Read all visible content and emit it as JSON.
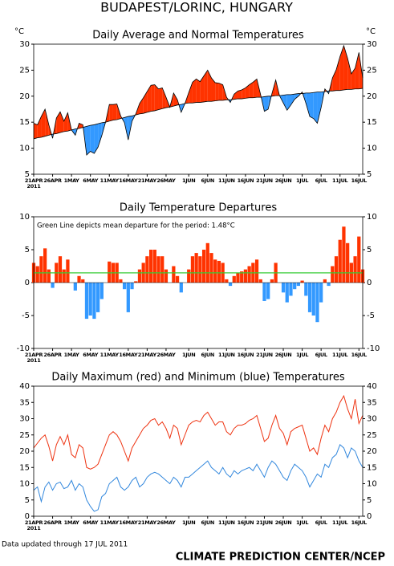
{
  "title": "BUDAPEST/LORINC, HUNGARY",
  "footer": {
    "updated": "Data updated through 17 JUL 2011",
    "source": "CLIMATE PREDICTION CENTER/NCEP"
  },
  "chart_data": [
    {
      "type": "area",
      "title": "Daily Average and Normal Temperatures",
      "y_label": "°C",
      "x": [
        "21APR",
        "22APR",
        "23APR",
        "24APR",
        "25APR",
        "26APR",
        "27APR",
        "28APR",
        "29APR",
        "30APR",
        "1MAY",
        "2MAY",
        "3MAY",
        "4MAY",
        "5MAY",
        "6MAY",
        "7MAY",
        "8MAY",
        "9MAY",
        "10MAY",
        "11MAY",
        "12MAY",
        "13MAY",
        "14MAY",
        "15MAY",
        "16MAY",
        "17MAY",
        "18MAY",
        "19MAY",
        "20MAY",
        "21MAY",
        "22MAY",
        "23MAY",
        "24MAY",
        "25MAY",
        "26MAY",
        "27MAY",
        "28MAY",
        "29MAY",
        "30MAY",
        "31MAY",
        "1JUN",
        "2JUN",
        "3JUN",
        "4JUN",
        "5JUN",
        "6JUN",
        "7JUN",
        "8JUN",
        "9JUN",
        "10JUN",
        "11JUN",
        "12JUN",
        "13JUN",
        "14JUN",
        "15JUN",
        "16JUN",
        "17JUN",
        "18JUN",
        "19JUN",
        "20JUN",
        "21JUN",
        "22JUN",
        "23JUN",
        "24JUN",
        "25JUN",
        "26JUN",
        "27JUN",
        "28JUN",
        "29JUN",
        "30JUN",
        "1JUL",
        "2JUL",
        "3JUL",
        "4JUL",
        "5JUL",
        "6JUL",
        "7JUL",
        "8JUL",
        "9JUL",
        "10JUL",
        "11JUL",
        "12JUL",
        "13JUL",
        "14JUL",
        "15JUL",
        "16JUL",
        "17JUL"
      ],
      "xticks": [
        "21APR",
        "26APR",
        "1MAY",
        "6MAY",
        "11MAY",
        "16MAY",
        "21MAY",
        "26MAY",
        "1JUN",
        "6JUN",
        "11JUN",
        "16JUN",
        "21JUN",
        "26JUN",
        "1JUL",
        "6JUL",
        "11JUL",
        "16JUL"
      ],
      "x_year": "2011",
      "ylim": [
        5,
        30
      ],
      "yticks": [
        5,
        10,
        15,
        20,
        25,
        30
      ],
      "above_color": "#ff3300",
      "below_color": "#3399ff",
      "line_color": "#000000",
      "values": [
        14.8,
        14.5,
        16.1,
        17.5,
        14.5,
        11.9,
        15.8,
        17.0,
        15.2,
        16.8,
        13.5,
        12.5,
        14.8,
        14.5,
        8.7,
        9.4,
        9.0,
        10.2,
        12.4,
        15.0,
        18.4,
        18.4,
        18.5,
        16.2,
        14.9,
        11.6,
        15.2,
        16.6,
        18.6,
        19.7,
        20.9,
        22.1,
        22.2,
        21.4,
        21.6,
        19.8,
        17.9,
        20.6,
        19.3,
        16.9,
        18.6,
        20.7,
        22.7,
        23.3,
        22.8,
        23.9,
        25.0,
        23.5,
        22.6,
        22.5,
        22.2,
        19.8,
        18.8,
        20.4,
        21.0,
        21.2,
        21.6,
        22.2,
        22.7,
        23.3,
        20.3,
        17.1,
        17.5,
        20.5,
        23.1,
        20.1,
        18.7,
        17.3,
        18.3,
        19.4,
        20.0,
        20.8,
        18.6,
        16.1,
        15.7,
        14.8,
        17.8,
        21.4,
        20.5,
        23.5,
        25.1,
        27.6,
        29.7,
        27.3,
        24.3,
        25.4,
        28.4,
        23.5
      ],
      "normal": [
        11.8,
        12.0,
        12.1,
        12.3,
        12.5,
        12.7,
        12.8,
        13.0,
        13.2,
        13.3,
        13.5,
        13.7,
        13.8,
        14.0,
        14.2,
        14.4,
        14.5,
        14.7,
        14.9,
        15.0,
        15.2,
        15.4,
        15.5,
        15.7,
        15.9,
        16.1,
        16.2,
        16.4,
        16.6,
        16.7,
        16.9,
        17.1,
        17.2,
        17.4,
        17.6,
        17.8,
        17.9,
        18.1,
        18.3,
        18.4,
        18.6,
        18.7,
        18.7,
        18.8,
        18.8,
        18.9,
        19.0,
        19.0,
        19.1,
        19.2,
        19.2,
        19.3,
        19.3,
        19.4,
        19.5,
        19.5,
        19.6,
        19.7,
        19.7,
        19.8,
        19.8,
        19.9,
        20.0,
        20.0,
        20.1,
        20.1,
        20.2,
        20.3,
        20.3,
        20.4,
        20.5,
        20.5,
        20.6,
        20.6,
        20.7,
        20.8,
        20.8,
        20.9,
        21.0,
        21.0,
        21.1,
        21.1,
        21.2,
        21.3,
        21.3,
        21.4,
        21.4,
        21.5
      ]
    },
    {
      "type": "bar",
      "title": "Daily Temperature Departures",
      "annotation": "Green Line depicts mean departure for the period: 1.48°C",
      "xticks": [
        "21APR",
        "26APR",
        "1MAY",
        "6MAY",
        "11MAY",
        "16MAY",
        "21MAY",
        "26MAY",
        "1JUN",
        "6JUN",
        "11JUN",
        "16JUN",
        "21JUN",
        "26JUN",
        "1JUL",
        "6JUL",
        "11JUL",
        "16JUL"
      ],
      "x_year": "2011",
      "ylim": [
        -10,
        10
      ],
      "yticks": [
        -10,
        -5,
        0,
        5,
        10
      ],
      "positive_color": "#ff3300",
      "negative_color": "#3399ff",
      "mean_departure": 1.48,
      "mean_color": "#33cc33",
      "values": [
        3,
        2.5,
        4,
        5.2,
        2,
        -0.8,
        3,
        4,
        2,
        3.5,
        0,
        -1.2,
        1,
        0.5,
        -5.5,
        -5,
        -5.5,
        -4.5,
        -2.5,
        0,
        3.2,
        3,
        3,
        0.5,
        -1,
        -4.5,
        -1,
        0.2,
        2,
        3,
        4,
        5,
        5,
        4,
        4,
        2,
        0,
        2.5,
        1,
        -1.5,
        0,
        2,
        4,
        4.5,
        4,
        5,
        6,
        4.5,
        3.5,
        3.3,
        3,
        0.5,
        -0.5,
        1,
        1.5,
        1.7,
        2,
        2.5,
        3,
        3.5,
        0.5,
        -2.8,
        -2.5,
        0.5,
        3,
        0,
        -1.5,
        -3,
        -2,
        -1,
        -0.5,
        0.3,
        -2,
        -4.5,
        -5,
        -6,
        -3,
        0.5,
        -0.5,
        2.5,
        4,
        6.5,
        8.5,
        6,
        3,
        4,
        7,
        2
      ]
    },
    {
      "type": "line",
      "title": "Daily Maximum (red) and Minimum (blue) Temperatures",
      "xticks": [
        "21APR",
        "26APR",
        "1MAY",
        "6MAY",
        "11MAY",
        "16MAY",
        "21MAY",
        "26MAY",
        "1JUN",
        "6JUN",
        "11JUN",
        "16JUN",
        "21JUN",
        "26JUN",
        "1JUL",
        "6JUL",
        "11JUL",
        "16JUL"
      ],
      "x_year": "2011",
      "ylim": [
        0,
        40
      ],
      "yticks": [
        0,
        5,
        10,
        15,
        20,
        25,
        30,
        35,
        40
      ],
      "series": [
        {
          "color": "#ee3311",
          "values": [
            21,
            22.5,
            24,
            25,
            21.5,
            17,
            22,
            24.5,
            22,
            25,
            19,
            18,
            22,
            21,
            15,
            14.5,
            15,
            16,
            19,
            22,
            25,
            26,
            25,
            23,
            20,
            17,
            21,
            23,
            25,
            27,
            28,
            29.5,
            30,
            28,
            29,
            27,
            24,
            28,
            27,
            22,
            25,
            28,
            29,
            29.5,
            29,
            31,
            32,
            30,
            28,
            29,
            29,
            26,
            25,
            27,
            28,
            28,
            28.5,
            29.5,
            30,
            31,
            27,
            23,
            24,
            28,
            31,
            27,
            25.5,
            22,
            26,
            27,
            27.5,
            28,
            24,
            20,
            21,
            19,
            24,
            28,
            26,
            30,
            32,
            35,
            37,
            33,
            30,
            36,
            28.5,
            31
          ]
        },
        {
          "color": "#3388dd",
          "values": [
            8,
            9,
            4.5,
            9,
            10.5,
            8,
            10,
            10.5,
            8.5,
            9,
            11,
            8,
            10,
            9,
            5,
            3,
            1.5,
            2,
            6,
            7,
            10,
            11,
            12,
            9,
            8,
            9,
            11,
            12,
            9,
            10,
            12,
            13,
            13.5,
            13,
            12,
            11,
            10,
            12,
            11,
            9,
            12,
            12,
            13,
            14,
            15,
            16,
            17,
            15,
            14,
            13,
            15,
            13,
            12,
            14,
            13,
            14,
            14.5,
            15,
            14,
            16,
            14,
            12,
            15,
            17,
            16,
            14,
            12,
            11,
            14,
            16,
            15,
            14,
            12,
            9,
            11,
            13,
            12,
            16,
            15,
            18,
            19,
            22,
            21,
            18,
            21,
            20,
            17,
            15
          ]
        }
      ]
    }
  ]
}
